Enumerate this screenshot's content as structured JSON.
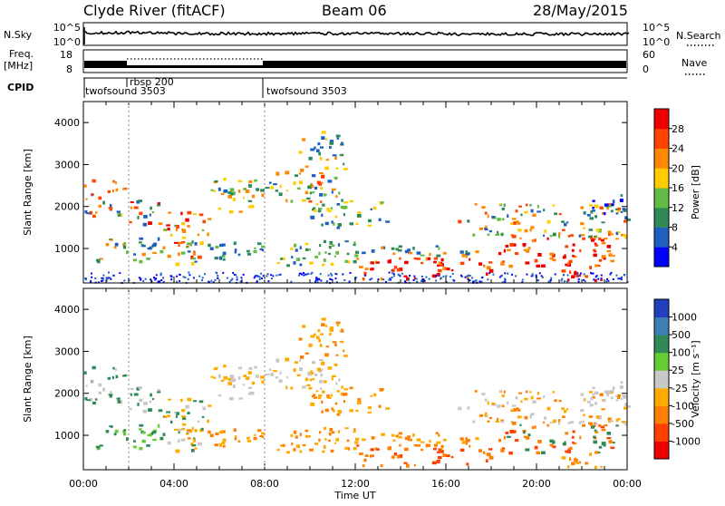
{
  "header": {
    "station": "Clyde River (fitACF)",
    "beam": "Beam 06",
    "date": "28/May/2015"
  },
  "side_labels": {
    "nsky": "N.Sky",
    "nsearch": "N.Search",
    "freq_line1": "Freq.",
    "freq_line2": "[MHz]",
    "nave": "Nave",
    "cpid": "CPID"
  },
  "colors": {
    "power": [
      "#0000ff",
      "#1e5fbf",
      "#2e8b57",
      "#66bb44",
      "#ffcc00",
      "#ff8800",
      "#ff4400",
      "#ee0000"
    ],
    "velocity": [
      "#2040c0",
      "#3c7fb0",
      "#2e8b57",
      "#66cc33",
      "#c8c8c8",
      "#ffaa00",
      "#ff7f00",
      "#ff4000",
      "#ee0000"
    ]
  },
  "chart_data": [
    {
      "type": "line",
      "panel": "noise",
      "left_ticks": [
        "10^5",
        "10^0"
      ],
      "right_ticks": [
        "10^5",
        "10^0"
      ]
    },
    {
      "type": "line",
      "panel": "frequency",
      "left_ticks": [
        "18",
        "8"
      ],
      "right_ticks": [
        "60",
        "0"
      ]
    },
    {
      "type": "table",
      "panel": "cpid",
      "segments": [
        {
          "start_hour": 0.0,
          "label": "twofsound 3503"
        },
        {
          "start_hour": 2.0,
          "label": "rbsp 200"
        },
        {
          "start_hour": 8.0,
          "label": "twofsound 3503"
        }
      ]
    },
    {
      "type": "heatmap",
      "panel": "power",
      "ylabel": "Slant Range [km]",
      "xlim": [
        0,
        24
      ],
      "ylim": [
        180,
        4500
      ],
      "yticks": [
        {
          "v": 1000,
          "label": "1000"
        },
        {
          "v": 2000,
          "label": "2000"
        },
        {
          "v": 3000,
          "label": "3000"
        },
        {
          "v": 4000,
          "label": "4000"
        }
      ],
      "colorbar": {
        "label": "Power [dB]",
        "ticks": [
          "4",
          "8",
          "12",
          "16",
          "20",
          "24",
          "28"
        ]
      }
    },
    {
      "type": "heatmap",
      "panel": "velocity",
      "ylabel": "Slant Range [km]",
      "xlabel": "Time UT",
      "xlim": [
        0,
        24
      ],
      "ylim": [
        180,
        4500
      ],
      "xticks": [
        {
          "v": 0,
          "label": "00:00"
        },
        {
          "v": 4,
          "label": "04:00"
        },
        {
          "v": 8,
          "label": "08:00"
        },
        {
          "v": 12,
          "label": "12:00"
        },
        {
          "v": 16,
          "label": "16:00"
        },
        {
          "v": 20,
          "label": "20:00"
        },
        {
          "v": 24,
          "label": "00:00"
        }
      ],
      "yticks": [
        {
          "v": 1000,
          "label": "1000"
        },
        {
          "v": 2000,
          "label": "2000"
        },
        {
          "v": 3000,
          "label": "3000"
        },
        {
          "v": 4000,
          "label": "4000"
        }
      ],
      "colorbar": {
        "label": "Velocity [m s⁻¹]",
        "ticks": [
          "1000",
          "500",
          "100",
          "25",
          "-25",
          "-100",
          "-500",
          "-1000"
        ]
      }
    }
  ]
}
